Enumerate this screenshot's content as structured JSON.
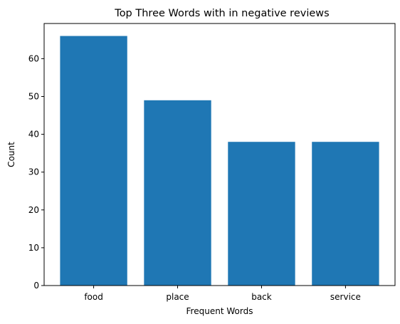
{
  "chart_data": {
    "type": "bar",
    "title": "Top Three Words with in negative reviews",
    "xlabel": "Frequent Words",
    "ylabel": "Count",
    "categories": [
      "food",
      "place",
      "back",
      "service"
    ],
    "values": [
      66,
      49,
      38,
      38
    ],
    "ylim": [
      0,
      69.3
    ],
    "yticks": [
      0,
      10,
      20,
      30,
      40,
      50,
      60
    ],
    "grid": false,
    "legend": "none",
    "bar_color": "#1f77b4"
  }
}
